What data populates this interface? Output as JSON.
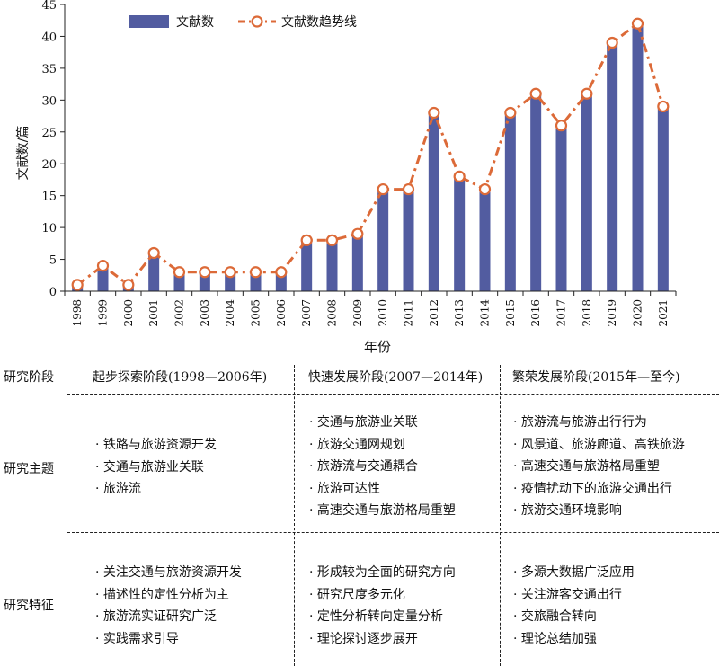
{
  "chart_data": {
    "type": "bar",
    "ylabel": "文献数/篇",
    "xlabel": "年份",
    "ylim": [
      0,
      45
    ],
    "yticks": [
      0,
      5,
      10,
      15,
      20,
      25,
      30,
      35,
      40,
      45
    ],
    "categories": [
      "1998",
      "1999",
      "2000",
      "2001",
      "2002",
      "2003",
      "2004",
      "2005",
      "2006",
      "2007",
      "2008",
      "2009",
      "2010",
      "2011",
      "2012",
      "2013",
      "2014",
      "2015",
      "2016",
      "2017",
      "2018",
      "2019",
      "2020",
      "2021"
    ],
    "series": [
      {
        "name": "文献数",
        "type": "bar",
        "color": "#525ca0",
        "values": [
          1,
          4,
          1,
          6,
          3,
          3,
          3,
          3,
          3,
          8,
          8,
          9,
          16,
          16,
          28,
          18,
          16,
          28,
          31,
          26,
          31,
          39,
          42,
          29
        ]
      },
      {
        "name": "文献数趋势线",
        "type": "line",
        "color": "#dc6a38",
        "values": [
          1,
          4,
          1,
          6,
          3,
          3,
          3,
          3,
          3,
          8,
          8,
          9,
          16,
          16,
          28,
          18,
          16,
          28,
          31,
          26,
          31,
          39,
          42,
          29
        ]
      }
    ],
    "legend_position": "top-left"
  },
  "table": {
    "header_label": "研究阶段",
    "stages": [
      "起步探索阶段(1998—2006年)",
      "快速发展阶段(2007—2014年)",
      "繁荣发展阶段(2015年—至今)"
    ],
    "rows": [
      {
        "label": "研究主题",
        "cells": [
          [
            "铁路与旅游资源开发",
            "交通与旅游业关联",
            "旅游流"
          ],
          [
            "交通与旅游业关联",
            "旅游交通网规划",
            "旅游流与交通耦合",
            "旅游可达性",
            "高速交通与旅游格局重塑"
          ],
          [
            "旅游流与旅游出行行为",
            "风景道、旅游廊道、高铁旅游",
            "高速交通与旅游格局重塑",
            "疫情扰动下的旅游交通出行",
            "旅游交通环境影响"
          ]
        ]
      },
      {
        "label": "研究特征",
        "cells": [
          [
            "关注交通与旅游资源开发",
            "描述性的定性分析为主",
            "旅游流实证研究广泛",
            "实践需求引导"
          ],
          [
            "形成较为全面的研究方向",
            "研究尺度多元化",
            "定性分析转向定量分析",
            "理论探讨逐步展开"
          ],
          [
            "多源大数据广泛应用",
            "关注游客交通出行",
            "交旅融合转向",
            "理论总结加强"
          ]
        ]
      }
    ]
  }
}
